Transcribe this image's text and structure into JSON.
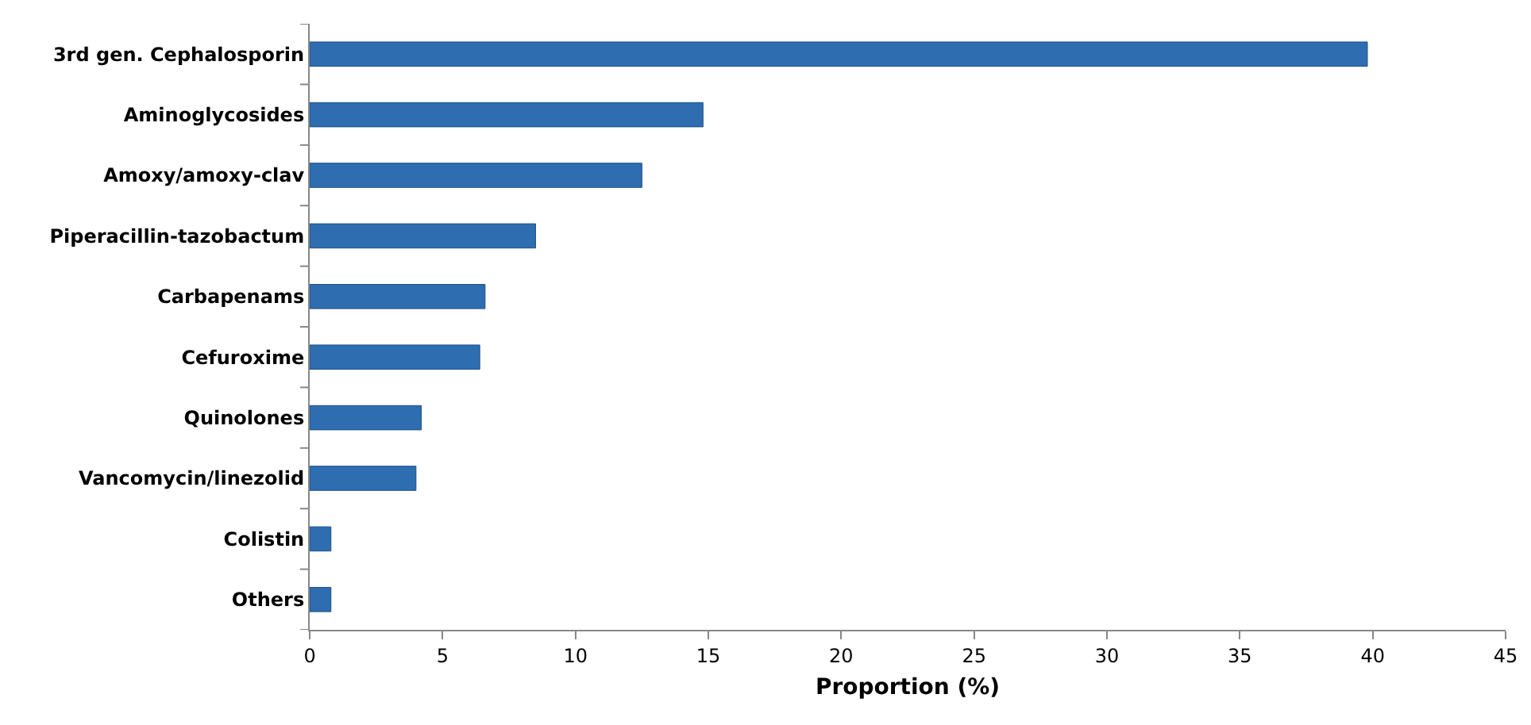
{
  "chart_data": {
    "type": "bar",
    "orientation": "horizontal",
    "xlabel": "Proportion (%)",
    "categories": [
      "3rd gen. Cephalosporin",
      "Aminoglycosides",
      "Amoxy/amoxy-clav",
      "Piperacillin-tazobactum",
      "Carbapenams",
      "Cefuroxime",
      "Quinolones",
      "Vancomycin/linezolid",
      "Colistin",
      "Others"
    ],
    "values": [
      39.8,
      14.8,
      12.5,
      8.5,
      6.6,
      6.4,
      4.2,
      4.0,
      0.8,
      0.8
    ],
    "color": "#2e6db0",
    "xlim": [
      0,
      45
    ],
    "xticks": [
      0,
      5,
      10,
      15,
      20,
      25,
      30,
      35,
      40,
      45
    ]
  }
}
